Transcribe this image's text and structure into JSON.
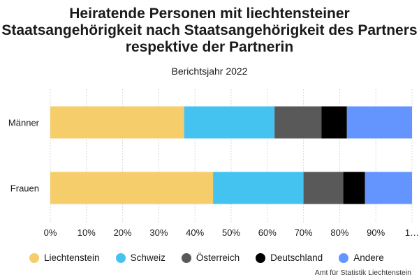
{
  "chart_data": {
    "type": "bar",
    "orientation": "horizontal",
    "stacked": true,
    "title": "Heiratende Personen mit liechtensteiner Staatsangehörigkeit nach Staatsangehörigkeit des Partners respektive der Partnerin",
    "subtitle": "Berichtsjahr 2022",
    "categories": [
      "Männer",
      "Frauen"
    ],
    "series": [
      {
        "name": "Liechtenstein",
        "color": "#f5cd6a",
        "values": [
          37,
          45
        ]
      },
      {
        "name": "Schweiz",
        "color": "#45c3f0",
        "values": [
          25,
          25
        ]
      },
      {
        "name": "Österreich",
        "color": "#595959",
        "values": [
          13,
          11
        ]
      },
      {
        "name": "Deutschland",
        "color": "#000000",
        "values": [
          7,
          6
        ]
      },
      {
        "name": "Andere",
        "color": "#6495ff",
        "values": [
          18,
          13
        ]
      }
    ],
    "xlim": [
      0,
      100
    ],
    "xticks": [
      "0%",
      "10%",
      "20%",
      "30%",
      "40%",
      "50%",
      "60%",
      "70%",
      "80%",
      "90%",
      "1…"
    ],
    "grid": true,
    "legend_position": "bottom"
  },
  "source": "Amt für Statistik Liechtenstein"
}
